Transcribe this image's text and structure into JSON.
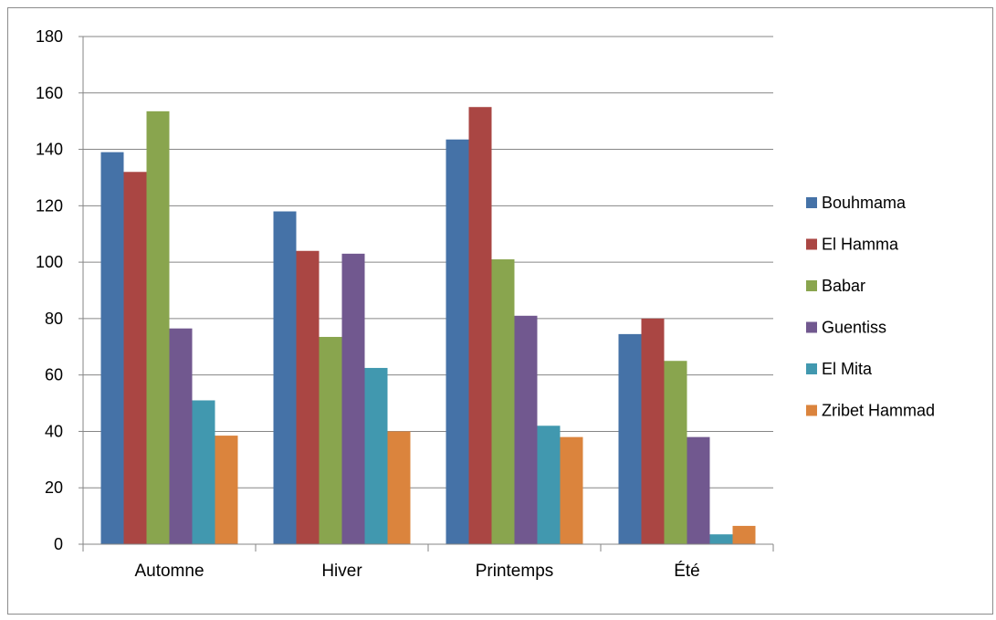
{
  "chart_data": {
    "type": "bar",
    "title": "",
    "xlabel": "",
    "ylabel": "",
    "categories": [
      "Automne",
      "Hiver",
      "Printemps",
      "Été"
    ],
    "ylim": [
      0,
      180
    ],
    "yticks": [
      0,
      20,
      40,
      60,
      80,
      100,
      120,
      140,
      160,
      180
    ],
    "grid": true,
    "legend_position": "right",
    "series": [
      {
        "name": "Bouhmama",
        "color": "#4572A7",
        "values": [
          139,
          118,
          143.5,
          74.5
        ]
      },
      {
        "name": "El Hamma",
        "color": "#AA4643",
        "values": [
          132,
          104,
          155,
          80
        ]
      },
      {
        "name": "Babar",
        "color": "#89A54E",
        "values": [
          153.5,
          73.5,
          101,
          65
        ]
      },
      {
        "name": "Guentiss",
        "color": "#71588F",
        "values": [
          76.5,
          103,
          81,
          38
        ]
      },
      {
        "name": "El Mita",
        "color": "#4198AF",
        "values": [
          51,
          62.5,
          42,
          3.5
        ]
      },
      {
        "name": "Zribet Hammad",
        "color": "#DB843D",
        "values": [
          38.5,
          40,
          38,
          6.5
        ]
      }
    ]
  }
}
